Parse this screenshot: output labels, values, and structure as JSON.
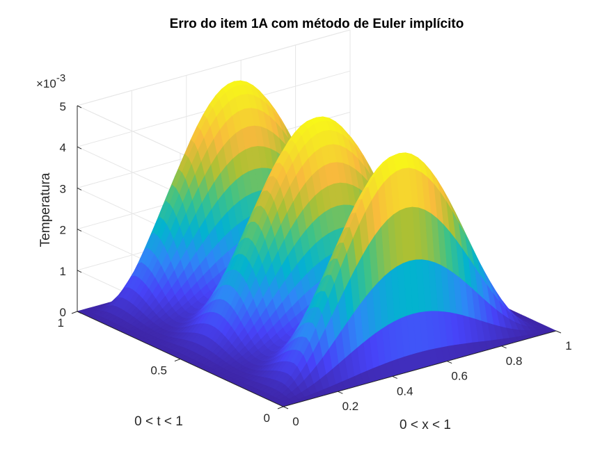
{
  "chart_data": {
    "type": "surface",
    "title": "Erro do item 1A com método de Euler implícito",
    "xlabel": "0 < x < 1",
    "ylabel": "0 < t < 1",
    "zlabel": "Temperatura",
    "z_exponent_base": "×10",
    "z_exponent_power": "-3",
    "xlim": [
      0,
      1
    ],
    "ylim": [
      0,
      1
    ],
    "zlim": [
      0,
      5
    ],
    "x_ticks": [
      "0",
      "0.2",
      "0.4",
      "0.6",
      "0.8",
      "1"
    ],
    "y_ticks": [
      "0",
      "0.5",
      "1"
    ],
    "z_ticks": [
      "0",
      "1",
      "2",
      "3",
      "4",
      "5"
    ],
    "z_scale": 0.001,
    "grid": true,
    "colormap": "parula",
    "colormap_colors": [
      "#3e26a8",
      "#4743f8",
      "#2e87f7",
      "#03b3cf",
      "#3dc289",
      "#adc033",
      "#f8ba3d",
      "#f5e128",
      "#f9fb15"
    ],
    "surface": {
      "x_profile": "sin(pi*x)^2",
      "t_peaks": [
        0.1,
        0.5,
        0.9
      ],
      "peak_values_e3": [
        5.0,
        4.95,
        4.9
      ],
      "t_scallop_amplitude": 0.78
    }
  }
}
